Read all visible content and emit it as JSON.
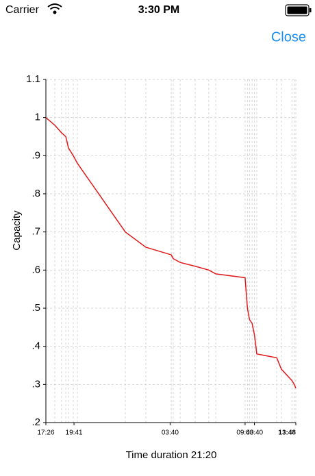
{
  "status_bar": {
    "carrier": "Carrier",
    "time": "3:30 PM"
  },
  "nav": {
    "close": "Close"
  },
  "chart_data": {
    "type": "line",
    "xlabel": "Time duration 21:20",
    "ylabel": "Capacity",
    "x": [
      0,
      0.76,
      1.34,
      1.7,
      1.93,
      2.34,
      2.69,
      6.78,
      8.53,
      10.7,
      10.87,
      11.46,
      12.74,
      13.9,
      14.5,
      17.0,
      17.2,
      17.38,
      17.6,
      17.8,
      18.0,
      19.7,
      20.1,
      21.0,
      21.2,
      21.33
    ],
    "series": [
      {
        "name": "Capacity",
        "color": "#e0191b",
        "values": [
          1.0,
          0.98,
          0.96,
          0.95,
          0.92,
          0.9,
          0.88,
          0.7,
          0.66,
          0.64,
          0.63,
          0.62,
          0.61,
          0.6,
          0.59,
          0.58,
          0.5,
          0.47,
          0.46,
          0.43,
          0.38,
          0.37,
          0.34,
          0.31,
          0.3,
          0.29
        ]
      }
    ],
    "xlim": [
      0,
      21.33
    ],
    "ylim": [
      0.2,
      1.1
    ],
    "xticks": [
      {
        "value": 0,
        "label": "17:26"
      },
      {
        "value": 2.4,
        "label": "19:41"
      },
      {
        "value": 10.6,
        "label": "03:40"
      },
      {
        "value": 17.0,
        "label": "09:40"
      },
      {
        "value": 17.8,
        "label": "03:40"
      },
      {
        "value": 21.33,
        "label": "13:48"
      }
    ],
    "yticks": [
      {
        "value": 0.2,
        "label": ".2"
      },
      {
        "value": 0.3,
        "label": ".3"
      },
      {
        "value": 0.4,
        "label": ".4"
      },
      {
        "value": 0.5,
        "label": ".5"
      },
      {
        "value": 0.6,
        "label": ".6"
      },
      {
        "value": 0.7,
        "label": ".7"
      },
      {
        "value": 0.8,
        "label": ".8"
      },
      {
        "value": 0.9,
        "label": ".9"
      },
      1,
      1.1
    ],
    "grid": true
  }
}
